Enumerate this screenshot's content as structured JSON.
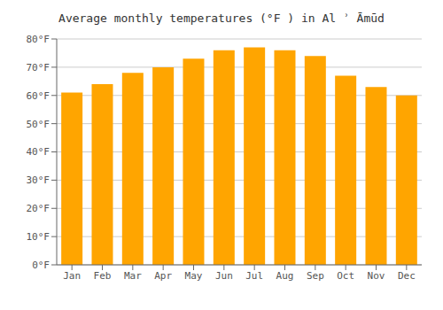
{
  "chart_data": {
    "type": "bar",
    "title": "Average monthly temperatures (°F ) in Al ʾ Āmūd",
    "categories": [
      "Jan",
      "Feb",
      "Mar",
      "Apr",
      "May",
      "Jun",
      "Jul",
      "Aug",
      "Sep",
      "Oct",
      "Nov",
      "Dec"
    ],
    "values": [
      61,
      64,
      68,
      70,
      73,
      76,
      77,
      76,
      74,
      67,
      63,
      60
    ],
    "color": "#FFA500",
    "ylim": [
      0,
      80
    ],
    "yticks": [
      {
        "value": 0,
        "label": "0°F"
      },
      {
        "value": 10,
        "label": "10°F"
      },
      {
        "value": 20,
        "label": "20°F"
      },
      {
        "value": 30,
        "label": "30°F"
      },
      {
        "value": 40,
        "label": "40°F"
      },
      {
        "value": 50,
        "label": "50°F"
      },
      {
        "value": 60,
        "label": "60°F"
      },
      {
        "value": 70,
        "label": "70°F"
      },
      {
        "value": 80,
        "label": "80°F"
      }
    ],
    "grid": true
  }
}
